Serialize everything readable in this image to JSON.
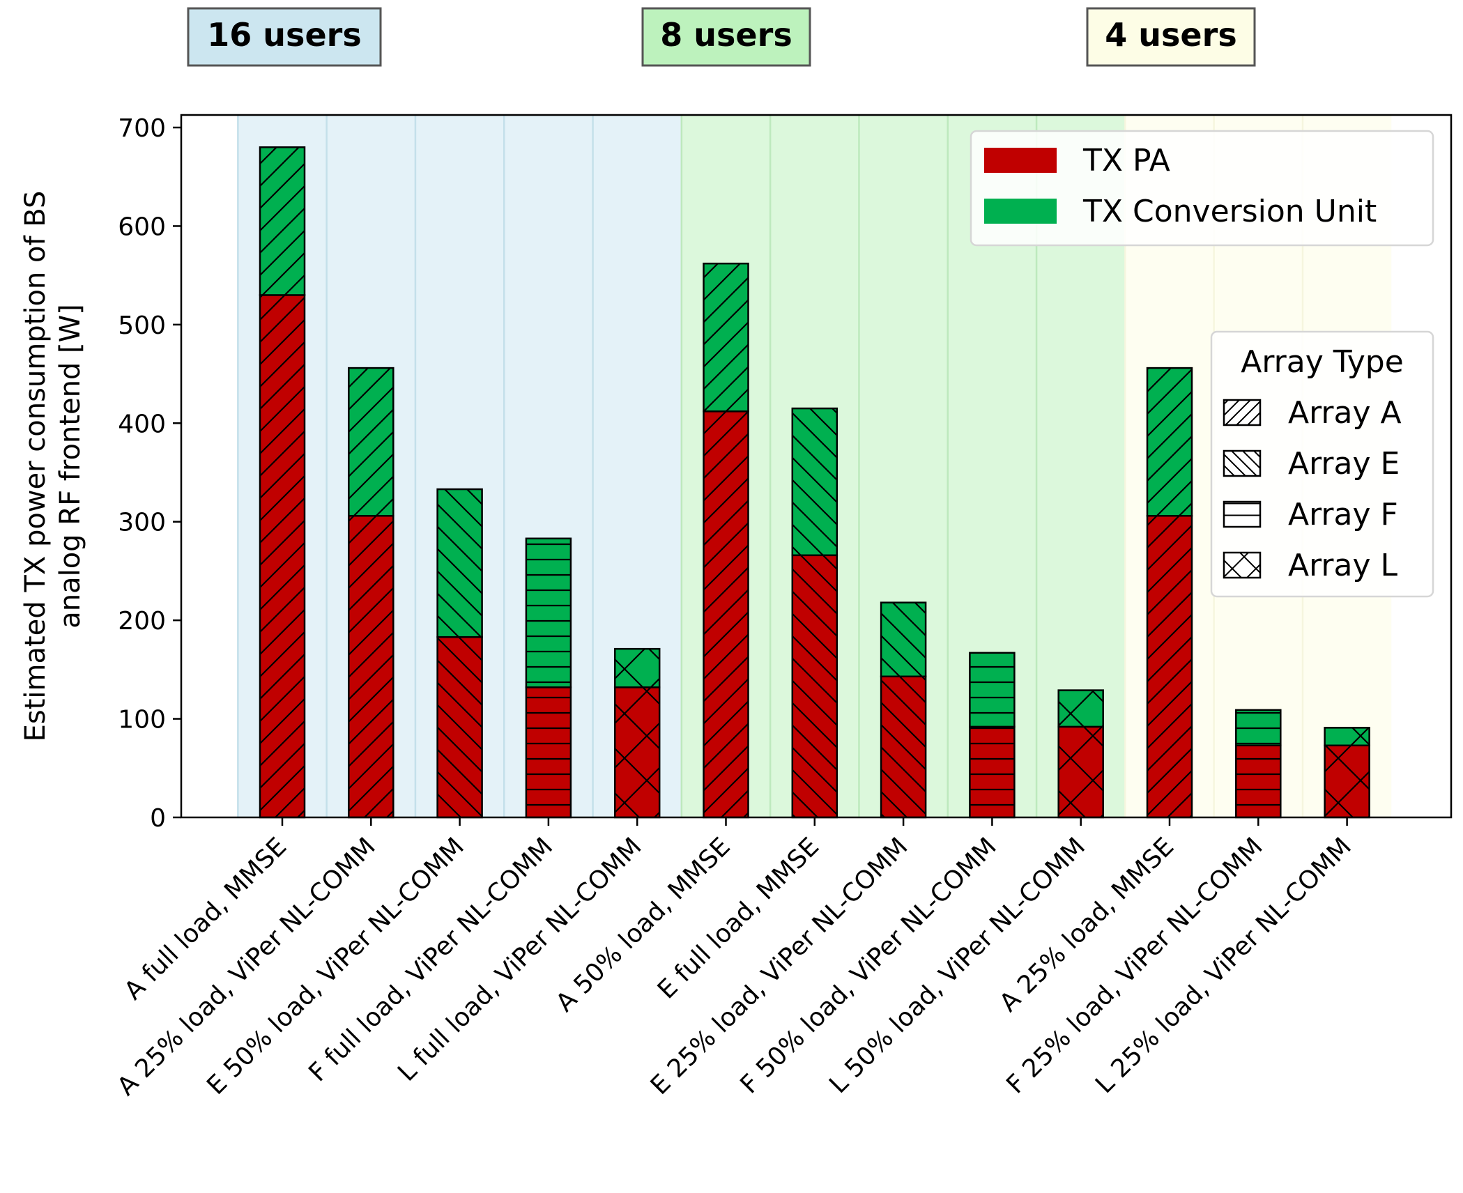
{
  "chart_data": {
    "type": "bar",
    "stacked": true,
    "ylabel": [
      "Estimated TX power consumption of BS",
      "analog RF frontend [W]"
    ],
    "ylim": [
      0,
      700
    ],
    "yticks": [
      0,
      100,
      200,
      300,
      400,
      500,
      600,
      700
    ],
    "grid": false,
    "categories": [
      "A full load, MMSE",
      "A 25% load, ViPer NL-COMM",
      "E 50% load, ViPer NL-COMM",
      "F full load, ViPer NL-COMM",
      "L full load, ViPer NL-COMM",
      "A 50% load, MMSE",
      "E full load, MMSE",
      "E 25% load, ViPer NL-COMM",
      "F 50% load, ViPer NL-COMM",
      "L 50% load, ViPer NL-COMM",
      "A 25% load, MMSE",
      "F 25% load, ViPer NL-COMM",
      "L 25% load, ViPer NL-COMM"
    ],
    "array_type": [
      "A",
      "A",
      "E",
      "F",
      "L",
      "A",
      "E",
      "E",
      "F",
      "L",
      "A",
      "F",
      "L"
    ],
    "series": [
      {
        "name": "TX PA",
        "color": "#c00000",
        "values": [
          530,
          306,
          183,
          132,
          132,
          412,
          266,
          143,
          92,
          92,
          306,
          73,
          73
        ]
      },
      {
        "name": "TX Conversion Unit",
        "color": "#00b050",
        "values": [
          150,
          150,
          150,
          151,
          39,
          150,
          149,
          75,
          75,
          37,
          150,
          36,
          18
        ]
      }
    ],
    "groups": [
      {
        "label": "16 users",
        "start": 0,
        "end": 4,
        "bg": "#e4f2f8",
        "box": "#cce6f0",
        "line": "#c4e0ea"
      },
      {
        "label": "8 users",
        "start": 5,
        "end": 9,
        "bg": "#dcf8dc",
        "box": "#bdf2bd",
        "line": "#bde9bd"
      },
      {
        "label": "4 users",
        "start": 10,
        "end": 12,
        "bg": "#fefef1",
        "box": "#fdfde6",
        "line": "#f6f6de"
      }
    ],
    "legend": {
      "placement": "top-right",
      "items": [
        "TX PA",
        "TX Conversion Unit"
      ]
    },
    "hatch_legend": {
      "title": "Array Type",
      "placement": "center-right",
      "items": [
        {
          "label": "Array A",
          "hatch": "A"
        },
        {
          "label": "Array E",
          "hatch": "E"
        },
        {
          "label": "Array F",
          "hatch": "F"
        },
        {
          "label": "Array L",
          "hatch": "L"
        }
      ]
    }
  }
}
